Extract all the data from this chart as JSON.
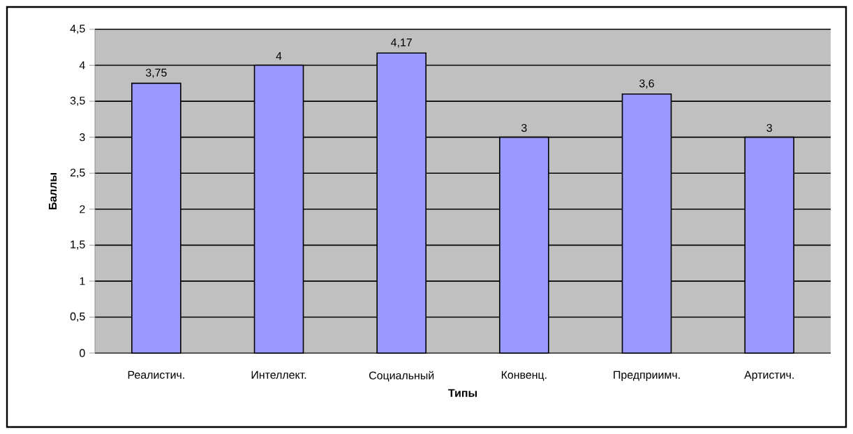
{
  "chart_data": {
    "type": "bar",
    "xlabel": "Типы",
    "ylabel": "Баллы",
    "categories": [
      "Реалистич.",
      "Интеллект.",
      "Социальный",
      "Конвенц.",
      "Предприимч.",
      "Артистич."
    ],
    "values": [
      3.75,
      4,
      4.17,
      3,
      3.6,
      3
    ],
    "value_labels": [
      "3,75",
      "4",
      "4,17",
      "3",
      "3,6",
      "3"
    ],
    "color": "#9999ff",
    "ylim": [
      0,
      4.5
    ],
    "yticks": [
      0,
      {
        "value": 0.5,
        "label": "0,5"
      },
      1,
      {
        "value": 1.5,
        "label": "1,5"
      },
      2,
      {
        "value": 2.5,
        "label": "2,5"
      },
      3,
      {
        "value": 3.5,
        "label": "3,5"
      },
      4,
      {
        "value": 4.5,
        "label": "4,5"
      }
    ],
    "grid": "y"
  }
}
